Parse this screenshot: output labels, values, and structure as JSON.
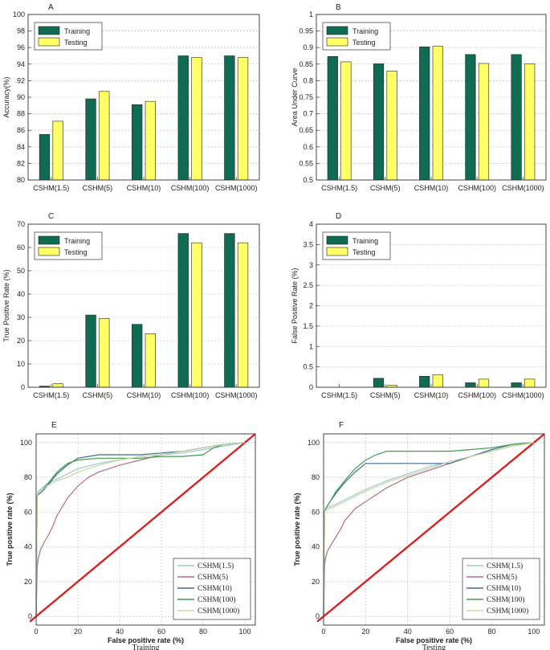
{
  "colors": {
    "training": "#0f6b52",
    "testing": "#ffff66",
    "diagonal": "#dd2020",
    "curves": [
      "#9fc7d6",
      "#b56b8a",
      "#3e6b8f",
      "#3aa04a",
      "#c8d8a0"
    ]
  },
  "chart_data": [
    {
      "type": "bar",
      "panel": "A",
      "ylabel": "Accuracy(%)",
      "ylim": [
        80,
        100
      ],
      "yticks": [
        80,
        82,
        84,
        86,
        88,
        90,
        92,
        94,
        96,
        98,
        100
      ],
      "categories": [
        "CSHM(1.5)",
        "CSHM(5)",
        "CSHM(10)",
        "CSHM(100)",
        "CSHM(1000)"
      ],
      "series": [
        {
          "name": "Training",
          "values": [
            85.5,
            89.8,
            89.1,
            95.0,
            95.0
          ]
        },
        {
          "name": "Testing",
          "values": [
            87.1,
            90.7,
            89.5,
            94.8,
            94.8
          ]
        }
      ],
      "legend": "top-left"
    },
    {
      "type": "bar",
      "panel": "B",
      "ylabel": "Area Under Curve",
      "ylim": [
        0.5,
        1
      ],
      "yticks": [
        "0.5",
        "0.55",
        "0.6",
        "0.65",
        "0.7",
        "0.75",
        "0.8",
        "0.85",
        "0.9",
        "0.95",
        "1"
      ],
      "categories": [
        "CSHM(1.5)",
        "CSHM(5)",
        "CSHM(10)",
        "CSHM(100)",
        "CSHM(1000)"
      ],
      "series": [
        {
          "name": "Training",
          "values": [
            0.873,
            0.851,
            0.902,
            0.879,
            0.879
          ]
        },
        {
          "name": "Testing",
          "values": [
            0.857,
            0.829,
            0.904,
            0.852,
            0.851
          ]
        }
      ],
      "legend": "top-left"
    },
    {
      "type": "bar",
      "panel": "C",
      "ylabel": "True Positive Rate (%)",
      "ylim": [
        0,
        70
      ],
      "yticks": [
        0,
        10,
        20,
        30,
        40,
        50,
        60,
        70
      ],
      "categories": [
        "CSHM(1.5)",
        "CSHM(5)",
        "CSHM(10)",
        "CSHM(100)",
        "CSHM(1000)"
      ],
      "series": [
        {
          "name": "Training",
          "values": [
            0.5,
            31.0,
            27.0,
            66.0,
            66.0
          ]
        },
        {
          "name": "Testing",
          "values": [
            1.5,
            29.5,
            23.0,
            62.0,
            62.0
          ]
        }
      ],
      "legend": "top-left"
    },
    {
      "type": "bar",
      "panel": "D",
      "ylabel": "False Positive Rate (%)",
      "ylim": [
        0,
        4
      ],
      "yticks": [
        "0",
        "0.5",
        "1",
        "1.5",
        "2",
        "2.5",
        "3",
        "3.5",
        "4"
      ],
      "categories": [
        "CSHM(1.5)",
        "CSHM(5)",
        "CSHM(10)",
        "CSHM(100)",
        "CSHM(1000)"
      ],
      "series": [
        {
          "name": "Training",
          "values": [
            0.0,
            0.22,
            0.27,
            0.11,
            0.11
          ]
        },
        {
          "name": "Testing",
          "values": [
            0.0,
            0.05,
            0.31,
            0.2,
            0.2
          ]
        }
      ],
      "legend": "top-left"
    },
    {
      "type": "line",
      "panel": "E",
      "title": "Training",
      "xlabel": "False positive rate (%)",
      "ylabel": "True positive rate (%)",
      "xlim": [
        0,
        105
      ],
      "ylim": [
        -5,
        105
      ],
      "xticks": [
        0,
        20,
        40,
        60,
        80,
        100
      ],
      "yticks": [
        0,
        20,
        40,
        60,
        80,
        100
      ],
      "diagonal": [
        [
          -3,
          -3
        ],
        [
          105,
          105
        ]
      ],
      "series": [
        {
          "name": "CSHM(1.5)",
          "x": [
            0,
            0.5,
            1,
            5,
            10,
            15,
            20,
            30,
            40,
            50,
            60,
            70,
            80,
            90,
            100
          ],
          "y": [
            0,
            69,
            72,
            76,
            79,
            82,
            85,
            88,
            90,
            92,
            93,
            94,
            96,
            98,
            100
          ]
        },
        {
          "name": "CSHM(5)",
          "x": [
            0,
            0.5,
            1,
            2,
            4,
            6,
            8,
            10,
            15,
            20,
            25,
            30,
            40,
            50,
            60,
            70,
            80,
            90,
            100
          ],
          "y": [
            0,
            28,
            33,
            38,
            43,
            47,
            52,
            58,
            68,
            75,
            80,
            83,
            87,
            90,
            93,
            95,
            97,
            99,
            100
          ]
        },
        {
          "name": "CSHM(10)",
          "x": [
            0,
            0.5,
            1,
            3,
            6,
            10,
            15,
            20,
            25,
            30,
            40,
            50,
            60,
            70,
            80,
            90,
            100
          ],
          "y": [
            0,
            69,
            70,
            72,
            76,
            82,
            87,
            91,
            92,
            93,
            93,
            93,
            94,
            95,
            97,
            99,
            100
          ]
        },
        {
          "name": "CSHM(100)",
          "x": [
            0,
            0.5,
            1,
            3,
            6,
            10,
            15,
            20,
            30,
            40,
            50,
            60,
            70,
            80,
            85,
            90,
            100
          ],
          "y": [
            0,
            69,
            71,
            73,
            77,
            83,
            88,
            90,
            91,
            91,
            91,
            92,
            92,
            93,
            97,
            99,
            100
          ]
        },
        {
          "name": "CSHM(1000)",
          "x": [
            0,
            0.5,
            1,
            5,
            10,
            15,
            20,
            30,
            40,
            50,
            60,
            70,
            80,
            90,
            100
          ],
          "y": [
            0,
            69,
            71,
            75,
            78,
            80,
            83,
            87,
            90,
            92,
            93,
            95,
            97,
            99,
            100
          ]
        }
      ],
      "legend": "bottom-right"
    },
    {
      "type": "line",
      "panel": "F",
      "title": "Testing",
      "xlabel": "False positive rate (%)",
      "ylabel": "True positive rate (%)",
      "xlim": [
        0,
        105
      ],
      "ylim": [
        -5,
        105
      ],
      "xticks": [
        0,
        20,
        40,
        60,
        80,
        100
      ],
      "yticks": [
        0,
        20,
        40,
        60,
        80,
        100
      ],
      "diagonal": [
        [
          -3,
          -3
        ],
        [
          105,
          105
        ]
      ],
      "series": [
        {
          "name": "CSHM(1.5)",
          "x": [
            0,
            0.5,
            1,
            5,
            10,
            15,
            20,
            30,
            40,
            50,
            60,
            70,
            80,
            90,
            100
          ],
          "y": [
            0,
            60,
            62,
            64,
            67,
            70,
            73,
            78,
            82,
            86,
            89,
            92,
            95,
            98,
            100
          ]
        },
        {
          "name": "CSHM(5)",
          "x": [
            0,
            0.5,
            1,
            2,
            4,
            6,
            8,
            10,
            15,
            20,
            25,
            30,
            40,
            50,
            60,
            70,
            80,
            90,
            100
          ],
          "y": [
            0,
            30,
            34,
            38,
            42,
            46,
            50,
            55,
            62,
            66,
            70,
            74,
            80,
            84,
            88,
            92,
            95,
            98,
            100
          ]
        },
        {
          "name": "CSHM(10)",
          "x": [
            0,
            0.5,
            1,
            3,
            6,
            10,
            15,
            20,
            25,
            30,
            40,
            50,
            60,
            70,
            80,
            90,
            100
          ],
          "y": [
            0,
            60,
            62,
            66,
            71,
            77,
            83,
            88,
            88,
            88,
            88,
            88,
            88,
            92,
            96,
            99,
            100
          ]
        },
        {
          "name": "CSHM(100)",
          "x": [
            0,
            0.5,
            1,
            3,
            6,
            10,
            15,
            20,
            25,
            30,
            40,
            50,
            60,
            70,
            80,
            90,
            100
          ],
          "y": [
            0,
            60,
            62,
            66,
            72,
            78,
            85,
            90,
            93,
            95,
            95,
            95,
            95,
            96,
            97,
            99,
            100
          ]
        },
        {
          "name": "CSHM(1000)",
          "x": [
            0,
            0.5,
            1,
            5,
            10,
            15,
            20,
            30,
            40,
            50,
            60,
            70,
            80,
            90,
            100
          ],
          "y": [
            0,
            60,
            61,
            63,
            66,
            69,
            72,
            77,
            81,
            85,
            89,
            92,
            95,
            98,
            100
          ]
        }
      ],
      "legend": "bottom-right"
    }
  ]
}
